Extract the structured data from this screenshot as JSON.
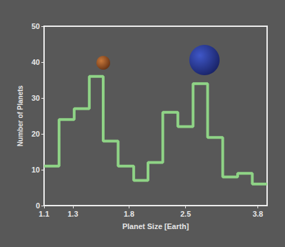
{
  "chart_data": {
    "type": "histogram",
    "x_label": "Planet Size [Earth]",
    "y_label": "Number of Planets",
    "bins": [
      1.1,
      1.2,
      1.31,
      1.43,
      1.55,
      1.69,
      1.85,
      2.01,
      2.19,
      2.39,
      2.61,
      2.84,
      3.1,
      3.38,
      3.68,
      4.01
    ],
    "counts": [
      11,
      24,
      27,
      36,
      18,
      11,
      7,
      12,
      26,
      22,
      34,
      19,
      8,
      9,
      6
    ],
    "color": "#8fd486",
    "xlim": [
      1.1,
      4.01
    ],
    "xticks": [
      1.1,
      1.3,
      1.8,
      2.5,
      3.8
    ],
    "ylim": [
      0,
      50
    ],
    "yticks": [
      0,
      10,
      20,
      30,
      40,
      50
    ],
    "log": "x",
    "grid": false
  }
}
